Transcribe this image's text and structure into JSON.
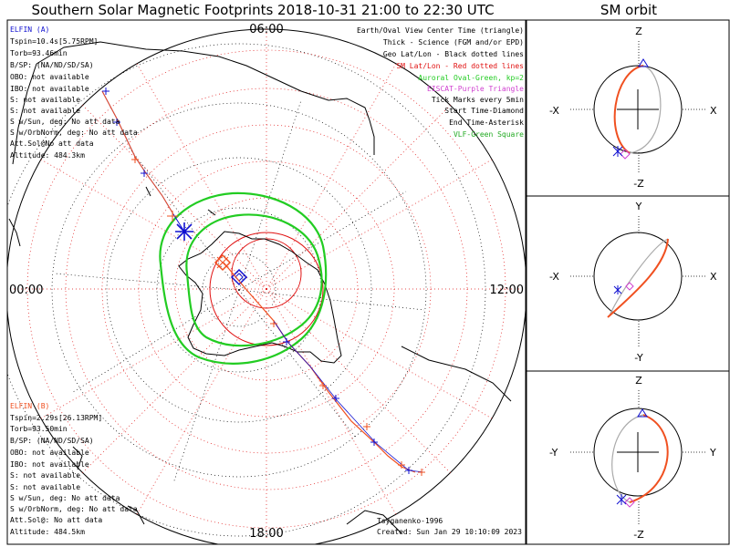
{
  "title": "Southern Solar Magnetic Footprints 2018-10-31 21:00 to 22:30 UTC",
  "sm_title": "SM orbit",
  "colors": {
    "elfin_a": "#1010d0",
    "elfin_b": "#f05020",
    "oval": "#22cc22",
    "grid_red": "#e01010",
    "eiscat": "#d040d0",
    "vlf": "#22aa22"
  },
  "elfin_a": {
    "name": "ELFIN (A)",
    "lines": [
      "Tspin=10.4s[5.75RPM]",
      "Torb=93.46min",
      "B/SP: (NA/ND/SD/SA)",
      "OBO: not available",
      "IBO: not available",
      "S: not available",
      "S: not available",
      "S w/Sun, deg: No att data",
      "S w/OrbNorm, deg: No att data",
      "Att.Sol@No att data",
      "Altitude: 484.3km"
    ]
  },
  "elfin_b": {
    "name": "ELFIN (B)",
    "lines": [
      "Tspin=2.29s[26.13RPM]",
      "Torb=93.50min",
      "B/SP: (NA/ND/SD/SA)",
      "OBO: not available",
      "IBO: not available",
      "S: not available",
      "S: not available",
      "S w/Sun, deg: No att data",
      "S w/OrbNorm, deg: No att data",
      "Att.Sol@: No att data",
      "Altitude: 484.5km"
    ]
  },
  "legend": [
    {
      "text": "Earth/Oval View Center Time (triangle)",
      "color": "#000000"
    },
    {
      "text": "Thick - Science (FGM and/or EPD)",
      "color": "#000000"
    },
    {
      "text": "Geo Lat/Lon - Black dotted lines",
      "color": "#000000"
    },
    {
      "text": "SM Lat/Lon - Red dotted lines",
      "color": "#e01010"
    },
    {
      "text": "Auroral Oval-Green, kp=2",
      "color": "#22cc22"
    },
    {
      "text": "EISCAT-Purple Triangle",
      "color": "#d040d0"
    },
    {
      "text": "Tick Marks every 5min",
      "color": "#000000"
    },
    {
      "text": "Start Time-Diamond",
      "color": "#000000"
    },
    {
      "text": "End Time-Asterisk",
      "color": "#000000"
    },
    {
      "text": "VLF-Green Square",
      "color": "#22aa22"
    }
  ],
  "clock_labels": {
    "top": "06:00",
    "left": "00:00",
    "right": "12:00",
    "bottom": "18:00"
  },
  "credits": {
    "model": "Tsyganenko-1996",
    "created": "Created: Sun Jan 29 10:10:09 2023"
  },
  "sm_panels": [
    {
      "name": "xz",
      "top": "Z",
      "bottom": "-Z",
      "left": "-X",
      "right": "X"
    },
    {
      "name": "xy",
      "top": "Y",
      "bottom": "-Y",
      "left": "-X",
      "right": "X"
    },
    {
      "name": "yz",
      "top": "Z",
      "bottom": "-Z",
      "left": "-Y",
      "right": "Y"
    }
  ]
}
